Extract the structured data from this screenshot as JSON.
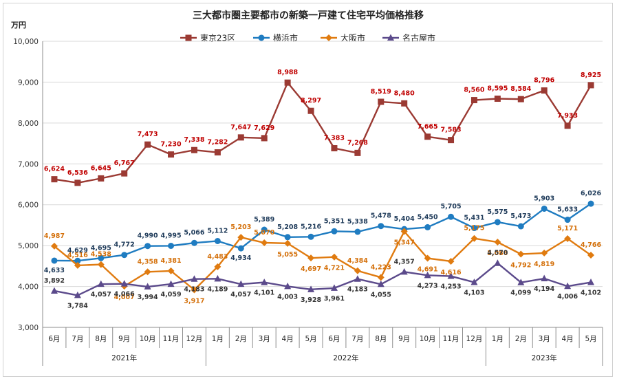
{
  "chart_data": {
    "type": "line",
    "title": "三大都市圏主要都市の新築一戸建て住宅平均価格推移",
    "unit_label": "万円",
    "ylim": [
      3000,
      10000
    ],
    "yticks": [
      "3,000",
      "4,000",
      "5,000",
      "6,000",
      "7,000",
      "8,000",
      "9,000",
      "10,000"
    ],
    "ytick_values": [
      3000,
      4000,
      5000,
      6000,
      7000,
      8000,
      9000,
      10000
    ],
    "categories": [
      "6月",
      "7月",
      "8月",
      "9月",
      "10月",
      "11月",
      "12月",
      "1月",
      "2月",
      "3月",
      "4月",
      "5月",
      "6月",
      "7月",
      "8月",
      "9月",
      "10月",
      "11月",
      "12月",
      "1月",
      "2月",
      "3月",
      "4月",
      "5月"
    ],
    "year_groups": [
      {
        "label": "2021年",
        "start": 0,
        "end": 6
      },
      {
        "label": "2022年",
        "start": 7,
        "end": 18
      },
      {
        "label": "2023年",
        "start": 19,
        "end": 23
      }
    ],
    "legend_position": "top-center",
    "grid": true,
    "series": [
      {
        "name": "東京23区",
        "color": "#9b3a33",
        "label_color": "#c00000",
        "marker": "square",
        "values": [
          6624,
          6536,
          6645,
          6767,
          7473,
          7230,
          7338,
          7282,
          7647,
          7629,
          8988,
          8297,
          7383,
          7268,
          8519,
          8480,
          7665,
          7583,
          8560,
          8595,
          8584,
          8796,
          7933,
          8925
        ],
        "labels": [
          "6,624",
          "6,536",
          "6,645",
          "6,767",
          "7,473",
          "7,230",
          "7,338",
          "7,282",
          "7,647",
          "7,629",
          "8,988",
          "8,297",
          "7,383",
          "7,268",
          "8,519",
          "8,480",
          "7,665",
          "7,583",
          "8,560",
          "8,595",
          "8,584",
          "8,796",
          "7,933",
          "8,925"
        ]
      },
      {
        "name": "横浜市",
        "color": "#1f7cc1",
        "label_color": "#1f3b5a",
        "marker": "circle",
        "values": [
          4633,
          4629,
          4695,
          4772,
          4990,
          4995,
          5066,
          5112,
          4934,
          5389,
          5208,
          5216,
          5351,
          5338,
          5478,
          5404,
          5450,
          5705,
          5431,
          5575,
          5473,
          5903,
          5633,
          6026
        ],
        "labels": [
          "4,633",
          "4,629",
          "4,695",
          "4,772",
          "4,990",
          "4,995",
          "5,066",
          "5,112",
          "4,934",
          "5,389",
          "5,208",
          "5,216",
          "5,351",
          "5,338",
          "5,478",
          "5,404",
          "5,450",
          "5,705",
          "5,431",
          "5,575",
          "5,473",
          "5,903",
          "5,633",
          "6,026"
        ]
      },
      {
        "name": "大阪市",
        "color": "#e07b10",
        "label_color": "#d4700a",
        "marker": "diamond",
        "values": [
          4987,
          4516,
          4538,
          4007,
          4358,
          4381,
          3917,
          4483,
          5203,
          5070,
          5055,
          4697,
          4721,
          4384,
          4223,
          5347,
          4691,
          4616,
          5175,
          5086,
          4792,
          4819,
          5171,
          4766
        ],
        "labels": [
          "4,987",
          "4,516",
          "4,538",
          "4,007",
          "4,358",
          "4,381",
          "3,917",
          "4,483",
          "5,203",
          "5,070",
          "5,055",
          "4,697",
          "4,721",
          "4,384",
          "4,223",
          "5,347",
          "4,691",
          "4,616",
          "5,175",
          "5,086",
          "4,792",
          "4,819",
          "5,171",
          "4,766"
        ]
      },
      {
        "name": "名古屋市",
        "color": "#5b4a8b",
        "label_color": "#333333",
        "marker": "triangle",
        "values": [
          3892,
          3784,
          4057,
          4066,
          3994,
          4059,
          4183,
          4189,
          4057,
          4101,
          4003,
          3928,
          3961,
          4183,
          4055,
          4357,
          4273,
          4253,
          4103,
          4570,
          4099,
          4194,
          4006,
          4102
        ],
        "labels": [
          "3,892",
          "3,784",
          "4,057",
          "4,066",
          "3,994",
          "4,059",
          "4,183",
          "4,189",
          "4,057",
          "4,101",
          "4,003",
          "3,928",
          "3,961",
          "4,183",
          "4,055",
          "4,357",
          "4,273",
          "4,253",
          "4,103",
          "4,570",
          "4,099",
          "4,194",
          "4,006",
          "4,102"
        ]
      }
    ]
  }
}
